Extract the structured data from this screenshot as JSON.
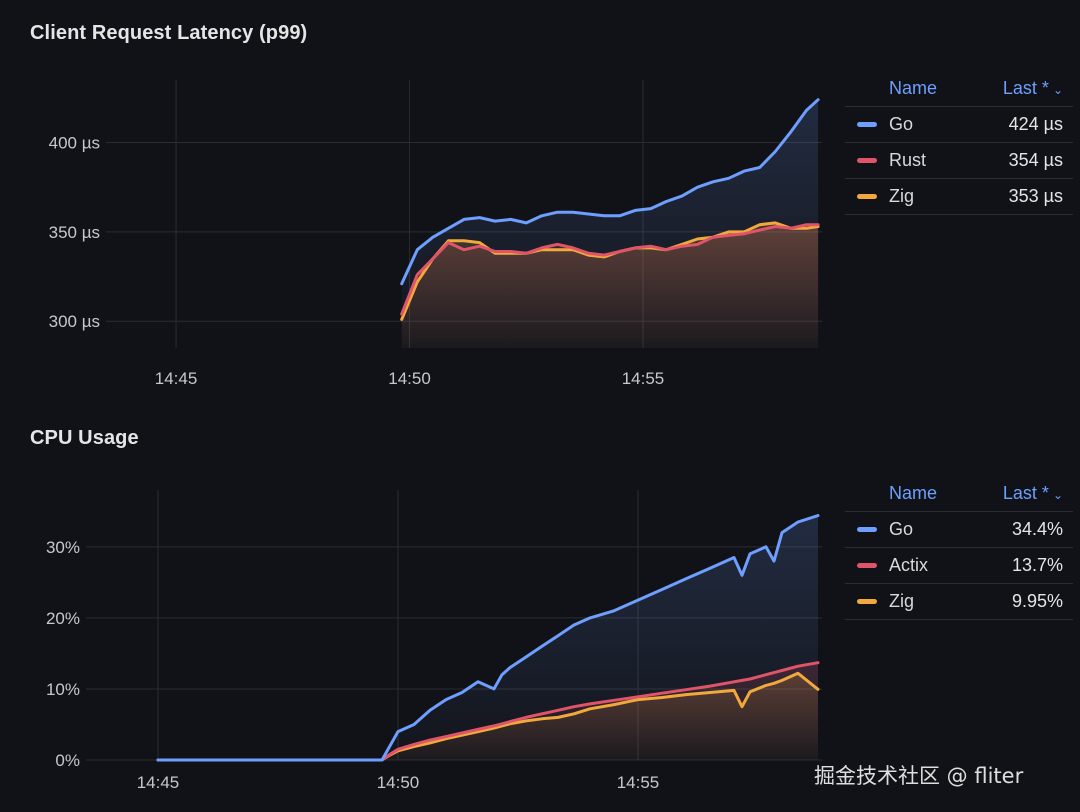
{
  "panels": [
    {
      "title": "Client Request Latency (p99)",
      "legend": {
        "name_header": "Name",
        "last_header": "Last *",
        "rows": [
          {
            "name": "Go",
            "last": "424 µs",
            "color": "#6e9fff"
          },
          {
            "name": "Rust",
            "last": "354 µs",
            "color": "#e0546a"
          },
          {
            "name": "Zig",
            "last": "353 µs",
            "color": "#f2a93b"
          }
        ]
      }
    },
    {
      "title": "CPU Usage",
      "legend": {
        "name_header": "Name",
        "last_header": "Last *",
        "rows": [
          {
            "name": "Go",
            "last": "34.4%",
            "color": "#6e9fff"
          },
          {
            "name": "Actix",
            "last": "13.7%",
            "color": "#e0546a"
          },
          {
            "name": "Zig",
            "last": "9.95%",
            "color": "#f2a93b"
          }
        ]
      }
    }
  ],
  "chart_data": [
    {
      "type": "line",
      "title": "Client Request Latency (p99)",
      "xlabel": "",
      "ylabel": "",
      "x_tick_labels": [
        "14:45",
        "14:50",
        "14:55"
      ],
      "y_ticks": [
        300,
        350,
        400
      ],
      "y_tick_labels": [
        "300 µs",
        "350 µs",
        "400 µs"
      ],
      "xlim": [
        "14:43:30",
        "14:58:50"
      ],
      "ylim": [
        285,
        435
      ],
      "grid": true,
      "legend_position": "right",
      "x": [
        "14:49:50",
        "14:50:10",
        "14:50:30",
        "14:50:50",
        "14:51:10",
        "14:51:30",
        "14:51:50",
        "14:52:10",
        "14:52:30",
        "14:52:50",
        "14:53:10",
        "14:53:30",
        "14:53:50",
        "14:54:10",
        "14:54:30",
        "14:54:50",
        "14:55:10",
        "14:55:30",
        "14:55:50",
        "14:56:10",
        "14:56:30",
        "14:56:50",
        "14:57:10",
        "14:57:30",
        "14:57:50",
        "14:58:10",
        "14:58:30",
        "14:58:45"
      ],
      "series": [
        {
          "name": "Go",
          "color": "#6e9fff",
          "values": [
            321,
            340,
            347,
            352,
            357,
            358,
            356,
            357,
            355,
            359,
            361,
            361,
            360,
            359,
            359,
            362,
            363,
            367,
            370,
            375,
            378,
            380,
            384,
            386,
            395,
            406,
            418,
            424
          ]
        },
        {
          "name": "Rust",
          "color": "#e0546a",
          "values": [
            304,
            326,
            335,
            344,
            340,
            342,
            339,
            339,
            338,
            341,
            343,
            341,
            338,
            337,
            339,
            341,
            342,
            340,
            342,
            343,
            347,
            348,
            349,
            351,
            353,
            352,
            354,
            354
          ]
        },
        {
          "name": "Zig",
          "color": "#f2a93b",
          "values": [
            301,
            322,
            335,
            345,
            345,
            344,
            338,
            338,
            338,
            340,
            340,
            340,
            337,
            336,
            339,
            341,
            341,
            340,
            343,
            346,
            347,
            350,
            350,
            354,
            355,
            352,
            352,
            353
          ]
        }
      ]
    },
    {
      "type": "line",
      "title": "CPU Usage",
      "xlabel": "",
      "ylabel": "",
      "x_tick_labels": [
        "14:45",
        "14:50",
        "14:55"
      ],
      "y_ticks": [
        0,
        10,
        20,
        30
      ],
      "y_tick_labels": [
        "0%",
        "10%",
        "20%",
        "30%"
      ],
      "xlim": [
        "14:43:30",
        "14:58:50"
      ],
      "ylim": [
        0,
        38
      ],
      "grid": true,
      "legend_position": "right",
      "x": [
        "14:45:00",
        "14:46:00",
        "14:47:00",
        "14:48:00",
        "14:49:00",
        "14:49:40",
        "14:49:50",
        "14:50:00",
        "14:50:20",
        "14:50:40",
        "14:51:00",
        "14:51:20",
        "14:51:40",
        "14:52:00",
        "14:52:10",
        "14:52:20",
        "14:52:40",
        "14:53:00",
        "14:53:20",
        "14:53:40",
        "14:54:00",
        "14:54:30",
        "14:55:00",
        "14:55:30",
        "14:56:00",
        "14:56:30",
        "14:57:00",
        "14:57:10",
        "14:57:20",
        "14:57:40",
        "14:57:50",
        "14:58:00",
        "14:58:20",
        "14:58:45"
      ],
      "series": [
        {
          "name": "Go",
          "color": "#6e9fff",
          "values": [
            0,
            0,
            0,
            0,
            0,
            0,
            2,
            4,
            5,
            7,
            8.5,
            9.5,
            11,
            10,
            12,
            13,
            14.5,
            16,
            17.5,
            19,
            20,
            21,
            22.5,
            24,
            25.5,
            27,
            28.5,
            26,
            29,
            30,
            28,
            32,
            33.5,
            34.4
          ]
        },
        {
          "name": "Actix",
          "color": "#e0546a",
          "values": [
            0,
            0,
            0,
            0,
            0,
            0,
            0.8,
            1.5,
            2.2,
            2.8,
            3.3,
            3.8,
            4.3,
            4.8,
            5.1,
            5.4,
            6,
            6.5,
            7,
            7.5,
            7.9,
            8.4,
            8.9,
            9.4,
            9.9,
            10.4,
            11,
            11.2,
            11.4,
            12,
            12.3,
            12.6,
            13.2,
            13.7
          ]
        },
        {
          "name": "Zig",
          "color": "#f2a93b",
          "values": [
            0,
            0,
            0,
            0,
            0,
            0,
            0.7,
            1.3,
            1.9,
            2.4,
            3,
            3.5,
            4,
            4.5,
            4.8,
            5.1,
            5.5,
            5.8,
            6,
            6.5,
            7.2,
            7.8,
            8.5,
            8.8,
            9.2,
            9.5,
            9.8,
            7.5,
            9.6,
            10.5,
            10.8,
            11.2,
            12.2,
            9.95
          ]
        }
      ]
    }
  ],
  "watermark": "掘金技术社区 @ fliter"
}
